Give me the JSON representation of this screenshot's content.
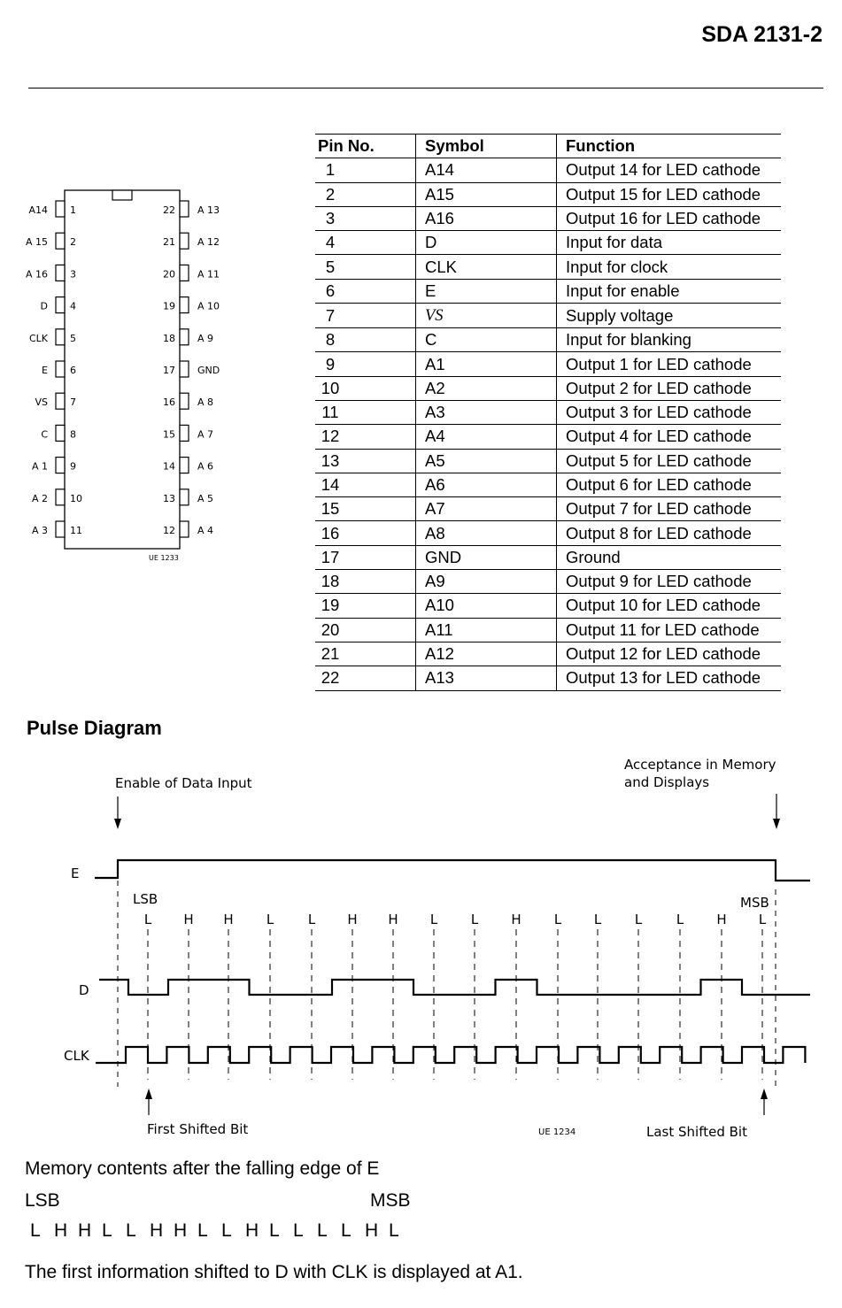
{
  "header": {
    "title": "SDA 2131-2"
  },
  "package": {
    "left_pins": [
      {
        "num": "1",
        "label": "A14"
      },
      {
        "num": "2",
        "label": "A 15"
      },
      {
        "num": "3",
        "label": "A 16"
      },
      {
        "num": "4",
        "label": "D"
      },
      {
        "num": "5",
        "label": "CLK"
      },
      {
        "num": "6",
        "label": "E"
      },
      {
        "num": "7",
        "label": "VS"
      },
      {
        "num": "8",
        "label": "C"
      },
      {
        "num": "9",
        "label": "A 1"
      },
      {
        "num": "10",
        "label": "A 2"
      },
      {
        "num": "11",
        "label": "A 3"
      }
    ],
    "right_pins": [
      {
        "num": "22",
        "label": "A 13"
      },
      {
        "num": "21",
        "label": "A 12"
      },
      {
        "num": "20",
        "label": "A 11"
      },
      {
        "num": "19",
        "label": "A 10"
      },
      {
        "num": "18",
        "label": "A 9"
      },
      {
        "num": "17",
        "label": "GND"
      },
      {
        "num": "16",
        "label": "A 8"
      },
      {
        "num": "15",
        "label": "A 7"
      },
      {
        "num": "14",
        "label": "A 6"
      },
      {
        "num": "13",
        "label": "A 5"
      },
      {
        "num": "12",
        "label": "A 4"
      }
    ],
    "ref": "UE 1233"
  },
  "pin_table": {
    "headers": [
      "Pin No.",
      "Symbol",
      "Function"
    ],
    "rows": [
      [
        "1",
        "A14",
        "Output 14 for LED cathode"
      ],
      [
        "2",
        "A15",
        "Output 15 for LED cathode"
      ],
      [
        "3",
        "A16",
        "Output 16 for LED cathode"
      ],
      [
        "4",
        "D",
        "Input for data"
      ],
      [
        "5",
        "CLK",
        "Input for clock"
      ],
      [
        "6",
        "E",
        "Input for enable"
      ],
      [
        "7",
        "VS",
        "Supply voltage"
      ],
      [
        "8",
        "C",
        "Input for blanking"
      ],
      [
        "9",
        "A1",
        "Output 1 for LED cathode"
      ],
      [
        "10",
        "A2",
        "Output 2 for LED cathode"
      ],
      [
        "11",
        "A3",
        "Output 3 for LED cathode"
      ],
      [
        "12",
        "A4",
        "Output 4 for LED cathode"
      ],
      [
        "13",
        "A5",
        "Output 5 for LED cathode"
      ],
      [
        "14",
        "A6",
        "Output 6 for LED cathode"
      ],
      [
        "15",
        "A7",
        "Output 7 for LED cathode"
      ],
      [
        "16",
        "A8",
        "Output 8 for LED cathode"
      ],
      [
        "17",
        "GND",
        "Ground"
      ],
      [
        "18",
        "A9",
        "Output 9 for LED cathode"
      ],
      [
        "19",
        "A10",
        "Output 10 for LED cathode"
      ],
      [
        "20",
        "A11",
        "Output 11 for LED cathode"
      ],
      [
        "21",
        "A12",
        "Output 12 for LED cathode"
      ],
      [
        "22",
        "A13",
        "Output 13 for LED cathode"
      ]
    ]
  },
  "pulse": {
    "title": "Pulse Diagram",
    "enable_label": "Enable of Data Input",
    "accept_label_1": "Acceptance in Memory",
    "accept_label_2": "and Displays",
    "signal_e": "E",
    "signal_d": "D",
    "signal_clk": "CLK",
    "lsb": "LSB",
    "msb": "MSB",
    "bits": [
      "L",
      "H",
      "H",
      "L",
      "L",
      "H",
      "H",
      "L",
      "L",
      "H",
      "L",
      "L",
      "L",
      "L",
      "H",
      "L"
    ],
    "first_shifted": "First Shifted Bit",
    "last_shifted": "Last Shifted  Bit",
    "ref": "UE 1234"
  },
  "memory": {
    "caption": "Memory contents after the falling edge of E",
    "lsb": "LSB",
    "msb": "MSB",
    "bits": [
      "L",
      "H",
      "H",
      "L",
      "L",
      "H",
      "H",
      "L",
      "L",
      "H",
      "L",
      "L",
      "L",
      "L",
      "H",
      "L"
    ]
  },
  "note": "The first information shifted to D with CLK is displayed at A1."
}
